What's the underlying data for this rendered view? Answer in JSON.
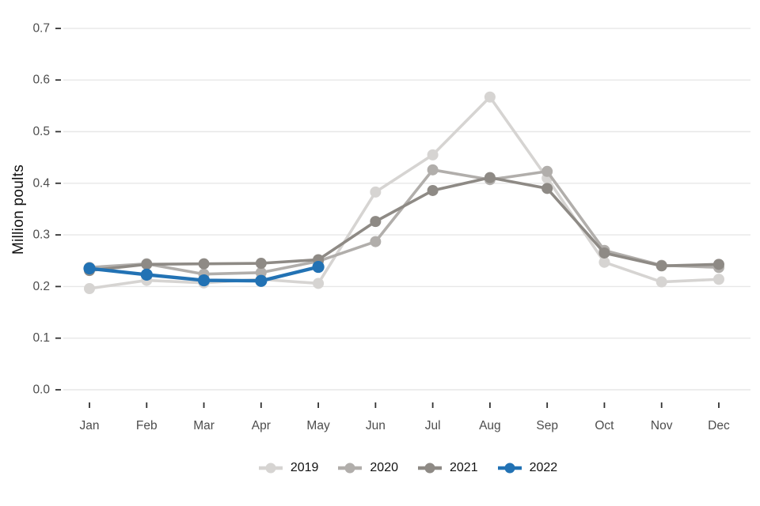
{
  "chart": {
    "y_axis_title": "Million poults",
    "x_axis_title": "",
    "legend_items": [
      "2019",
      "2020",
      "2021",
      "2022"
    ]
  },
  "chart_data": {
    "type": "line",
    "title": "",
    "xlabel": "",
    "ylabel": "Million poults",
    "categories": [
      "Jan",
      "Feb",
      "Mar",
      "Apr",
      "May",
      "Jun",
      "Jul",
      "Aug",
      "Sep",
      "Oct",
      "Nov",
      "Dec"
    ],
    "ylim": [
      0.0,
      0.7
    ],
    "yticks": [
      0.0,
      0.1,
      0.2,
      0.3,
      0.4,
      0.5,
      0.6,
      0.7
    ],
    "ytick_labels": [
      "0.0",
      "0.1",
      "0.2",
      "0.3",
      "0.4",
      "0.5",
      "0.6",
      "0.7"
    ],
    "grid": true,
    "legend_position": "bottom",
    "series": [
      {
        "name": "2019",
        "color": "#d6d4d2",
        "values": [
          0.196,
          0.212,
          0.207,
          0.214,
          0.206,
          0.383,
          0.455,
          0.567,
          0.41,
          0.247,
          0.209,
          0.214
        ]
      },
      {
        "name": "2020",
        "color": "#b1aeab",
        "values": [
          0.237,
          0.244,
          0.224,
          0.227,
          0.249,
          0.287,
          0.426,
          0.407,
          0.423,
          0.27,
          0.241,
          0.237
        ]
      },
      {
        "name": "2021",
        "color": "#8e8a85",
        "values": [
          0.231,
          0.243,
          0.244,
          0.245,
          0.252,
          0.326,
          0.386,
          0.411,
          0.39,
          0.265,
          0.24,
          0.243
        ]
      },
      {
        "name": "2022",
        "color": "#2272b4",
        "values": [
          0.235,
          0.223,
          0.212,
          0.211,
          0.238
        ]
      }
    ]
  },
  "colors": {
    "background": "#ffffff",
    "gridline": "#e7e7e7",
    "tick_mark": "#333333",
    "axis_text": "#4d4d4d",
    "accent_blue": "#2272b4"
  }
}
